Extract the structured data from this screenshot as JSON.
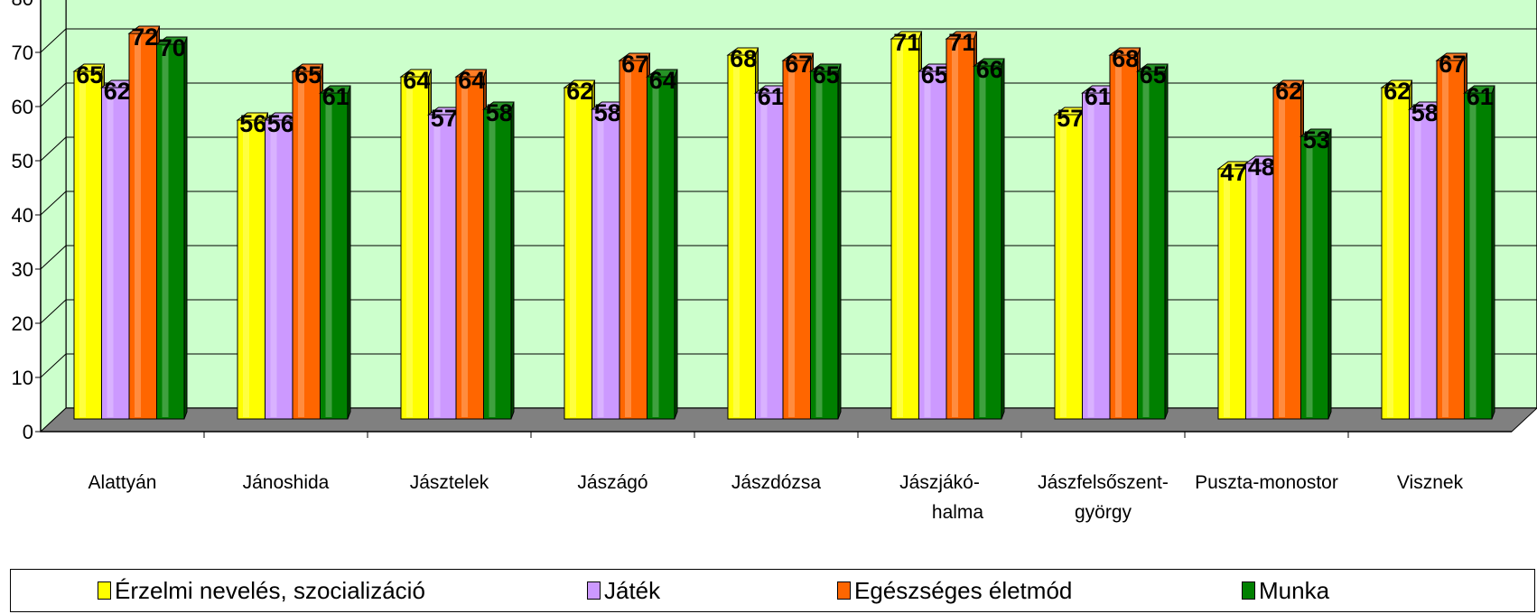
{
  "chart_data": {
    "type": "bar",
    "title": "",
    "xlabel": "",
    "ylabel": "",
    "ylim": [
      0,
      80
    ],
    "yticks": [
      0,
      10,
      20,
      30,
      40,
      50,
      60,
      70,
      80
    ],
    "grid": true,
    "legend_position": "bottom",
    "categories": [
      [
        "Alattyán"
      ],
      [
        "Jánoshida"
      ],
      [
        "Jásztelek"
      ],
      [
        "Jászágó"
      ],
      [
        "Jászdózsa"
      ],
      [
        "Jászjákó-",
        "halma"
      ],
      [
        "Jászfelsőszent-",
        "györgy"
      ],
      [
        "Puszta-monostor"
      ],
      [
        "Visznek"
      ]
    ],
    "series": [
      {
        "name": "Érzelmi nevelés, szocializáció",
        "color": "#ffff00",
        "values": [
          65,
          56,
          64,
          62,
          68,
          71,
          57,
          47,
          62
        ]
      },
      {
        "name": "Játék",
        "color": "#cc99ff",
        "values": [
          62,
          56,
          57,
          58,
          61,
          65,
          61,
          48,
          58
        ]
      },
      {
        "name": "Egészséges életmód",
        "color": "#ff6600",
        "values": [
          72,
          65,
          64,
          67,
          67,
          71,
          68,
          62,
          67
        ]
      },
      {
        "name": "Munka",
        "color": "#008000",
        "values": [
          70,
          61,
          58,
          64,
          65,
          66,
          65,
          53,
          61
        ]
      }
    ],
    "wall_color": "#ccffcc",
    "floor_color": "#808080"
  }
}
